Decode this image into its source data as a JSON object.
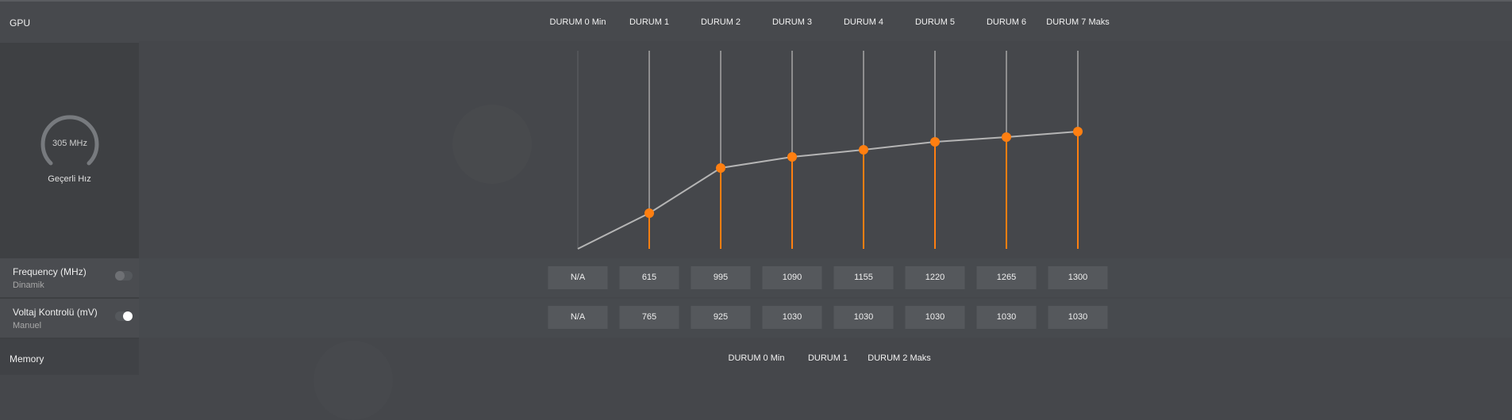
{
  "sidebar": {
    "gpu_label": "GPU",
    "gauge_value": "305 MHz",
    "gauge_caption": "Geçerli Hız",
    "frequency": {
      "title": "Frequency (MHz)",
      "mode": "Dinamik",
      "toggle_on": false
    },
    "voltage": {
      "title": "Voltaj Kontrolü (mV)",
      "mode": "Manuel",
      "toggle_on": true
    },
    "memory_label": "Memory"
  },
  "gpu_states": [
    "DURUM 0 Min",
    "DURUM 1",
    "DURUM 2",
    "DURUM 3",
    "DURUM 4",
    "DURUM 5",
    "DURUM 6",
    "DURUM 7 Maks"
  ],
  "frequency_values": [
    "N/A",
    "615",
    "995",
    "1090",
    "1155",
    "1220",
    "1265",
    "1300"
  ],
  "voltage_values": [
    "N/A",
    "765",
    "925",
    "1030",
    "1030",
    "1030",
    "1030",
    "1030"
  ],
  "memory_states": [
    "DURUM 0 Min",
    "DURUM 1",
    "DURUM 2 Maks"
  ],
  "colors": {
    "accent": "#ff7f11",
    "curve": "#b5b5b5",
    "stem": "#9a9a9a"
  }
}
